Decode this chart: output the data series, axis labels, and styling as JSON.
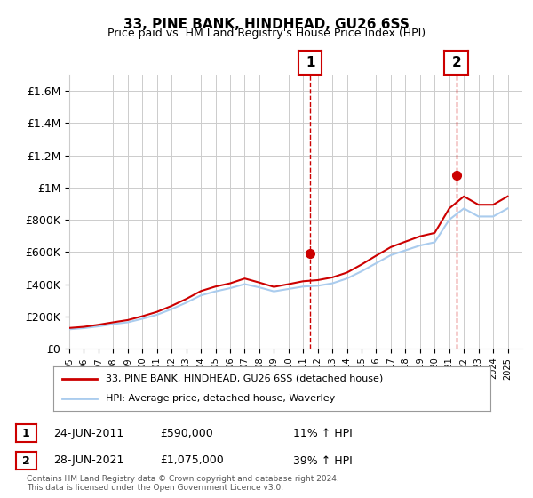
{
  "title": "33, PINE BANK, HINDHEAD, GU26 6SS",
  "subtitle": "Price paid vs. HM Land Registry's House Price Index (HPI)",
  "legend_line1": "33, PINE BANK, HINDHEAD, GU26 6SS (detached house)",
  "legend_line2": "HPI: Average price, detached house, Waverley",
  "footer": "Contains HM Land Registry data © Crown copyright and database right 2024.\nThis data is licensed under the Open Government Licence v3.0.",
  "sale1_label": "1",
  "sale1_date": "24-JUN-2011",
  "sale1_price": "£590,000",
  "sale1_hpi": "11% ↑ HPI",
  "sale2_label": "2",
  "sale2_date": "28-JUN-2021",
  "sale2_price": "£1,075,000",
  "sale2_hpi": "39% ↑ HPI",
  "sale1_x": 2011.48,
  "sale1_y": 590000,
  "sale2_x": 2021.48,
  "sale2_y": 1075000,
  "vline1_x": 2011.48,
  "vline2_x": 2021.48,
  "ylim": [
    0,
    1700000
  ],
  "xlim": [
    1995,
    2026
  ],
  "yticks": [
    0,
    200000,
    400000,
    600000,
    800000,
    1000000,
    1200000,
    1400000,
    1600000
  ],
  "ytick_labels": [
    "£0",
    "£200K",
    "£400K",
    "£600K",
    "£800K",
    "£1M",
    "£1.2M",
    "£1.4M",
    "£1.6M"
  ],
  "red_color": "#cc0000",
  "blue_color": "#aaccee",
  "vline_color": "#cc0000",
  "background_color": "#ffffff",
  "grid_color": "#cccccc",
  "hpi_years": [
    1995,
    1996,
    1997,
    1998,
    1999,
    2000,
    2001,
    2002,
    2003,
    2004,
    2005,
    2006,
    2007,
    2008,
    2009,
    2010,
    2011,
    2012,
    2013,
    2014,
    2015,
    2016,
    2017,
    2018,
    2019,
    2020,
    2021,
    2022,
    2023,
    2024,
    2025
  ],
  "hpi_values": [
    120000,
    127000,
    138000,
    152000,
    163000,
    185000,
    210000,
    245000,
    285000,
    330000,
    355000,
    375000,
    400000,
    380000,
    355000,
    370000,
    385000,
    390000,
    405000,
    435000,
    480000,
    530000,
    580000,
    610000,
    640000,
    660000,
    800000,
    870000,
    820000,
    820000,
    870000
  ],
  "red_years": [
    1995,
    1996,
    1997,
    1998,
    1999,
    2000,
    2001,
    2002,
    2003,
    2004,
    2005,
    2006,
    2007,
    2008,
    2009,
    2010,
    2011,
    2012,
    2013,
    2014,
    2015,
    2016,
    2017,
    2018,
    2019,
    2020,
    2021,
    2022,
    2023,
    2024,
    2025
  ],
  "red_values": [
    128000,
    135000,
    148000,
    163000,
    177000,
    201000,
    228000,
    265000,
    308000,
    357000,
    385000,
    405000,
    435000,
    410000,
    383000,
    400000,
    418000,
    425000,
    442000,
    472000,
    522000,
    577000,
    630000,
    664000,
    697000,
    718000,
    870000,
    945000,
    893000,
    893000,
    945000
  ]
}
